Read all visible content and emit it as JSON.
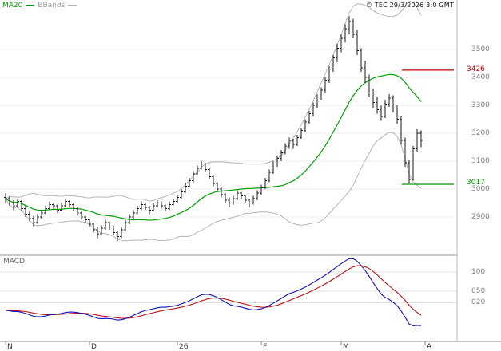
{
  "window": {
    "copyright": "© TEC 29/3/2026 3:0 GMT"
  },
  "legend": {
    "ma_label": "MA20",
    "bbands_label": "BBands"
  },
  "macd_panel": {
    "label": "MACD"
  },
  "colors": {
    "ma": "#00a000",
    "bbands": "#b5b5b5",
    "candle": "#1a1a1a",
    "macd": "#1111bb",
    "signal": "#bb1111",
    "resistance": "#cc0000",
    "support": "#009900"
  },
  "chart_data": {
    "type": "candlestick",
    "title": "",
    "price_axis": {
      "labels": [
        "3500",
        "3400",
        "3300",
        "3200",
        "3100",
        "3000",
        "2900"
      ],
      "values": [
        3500,
        3400,
        3300,
        3200,
        3100,
        3000,
        2900
      ]
    },
    "macd_axis": {
      "labels": [
        "100",
        "050",
        "020"
      ],
      "values": [
        100,
        50,
        20
      ]
    },
    "x_axis": {
      "labels": [
        "N",
        "D",
        "26",
        "F",
        "M",
        "A"
      ],
      "candle_indices": [
        0,
        21,
        43,
        64,
        84,
        105
      ]
    },
    "levels": {
      "resistance": {
        "label": "3426",
        "value": 3426
      },
      "support": {
        "label": "3017",
        "value": 3017
      }
    },
    "indicators": {
      "ma_period": 20,
      "bband_period": 20,
      "bband_stddev": 2,
      "macd": [
        12,
        26,
        9
      ]
    },
    "ohlc": [
      [
        2970,
        2985,
        2950,
        2965
      ],
      [
        2965,
        2975,
        2940,
        2950
      ],
      [
        2950,
        2960,
        2925,
        2940
      ],
      [
        2940,
        2965,
        2935,
        2955
      ],
      [
        2955,
        2960,
        2920,
        2930
      ],
      [
        2930,
        2940,
        2900,
        2910
      ],
      [
        2910,
        2920,
        2885,
        2895
      ],
      [
        2895,
        2905,
        2865,
        2880
      ],
      [
        2880,
        2910,
        2875,
        2900
      ],
      [
        2900,
        2925,
        2895,
        2915
      ],
      [
        2915,
        2940,
        2910,
        2930
      ],
      [
        2930,
        2955,
        2925,
        2945
      ],
      [
        2945,
        2950,
        2930,
        2940
      ],
      [
        2940,
        2945,
        2915,
        2925
      ],
      [
        2925,
        2950,
        2920,
        2940
      ],
      [
        2940,
        2965,
        2935,
        2955
      ],
      [
        2955,
        2960,
        2935,
        2945
      ],
      [
        2945,
        2950,
        2920,
        2930
      ],
      [
        2930,
        2935,
        2905,
        2915
      ],
      [
        2915,
        2920,
        2890,
        2900
      ],
      [
        2900,
        2905,
        2880,
        2890
      ],
      [
        2890,
        2895,
        2865,
        2875
      ],
      [
        2875,
        2880,
        2845,
        2855
      ],
      [
        2855,
        2865,
        2825,
        2840
      ],
      [
        2840,
        2870,
        2835,
        2860
      ],
      [
        2860,
        2890,
        2855,
        2880
      ],
      [
        2880,
        2885,
        2855,
        2865
      ],
      [
        2865,
        2870,
        2835,
        2845
      ],
      [
        2845,
        2850,
        2815,
        2830
      ],
      [
        2830,
        2865,
        2825,
        2855
      ],
      [
        2855,
        2890,
        2850,
        2880
      ],
      [
        2880,
        2910,
        2875,
        2900
      ],
      [
        2900,
        2925,
        2895,
        2915
      ],
      [
        2915,
        2940,
        2910,
        2930
      ],
      [
        2930,
        2955,
        2925,
        2945
      ],
      [
        2945,
        2950,
        2925,
        2935
      ],
      [
        2935,
        2940,
        2910,
        2925
      ],
      [
        2925,
        2950,
        2920,
        2940
      ],
      [
        2940,
        2960,
        2935,
        2950
      ],
      [
        2950,
        2955,
        2930,
        2940
      ],
      [
        2940,
        2945,
        2920,
        2930
      ],
      [
        2930,
        2955,
        2925,
        2945
      ],
      [
        2945,
        2965,
        2940,
        2955
      ],
      [
        2955,
        2980,
        2950,
        2970
      ],
      [
        2970,
        3000,
        2965,
        2990
      ],
      [
        2990,
        3020,
        2985,
        3010
      ],
      [
        3010,
        3040,
        3005,
        3030
      ],
      [
        3030,
        3065,
        3025,
        3055
      ],
      [
        3055,
        3085,
        3050,
        3075
      ],
      [
        3075,
        3100,
        3070,
        3090
      ],
      [
        3090,
        3095,
        3060,
        3070
      ],
      [
        3070,
        3075,
        3035,
        3045
      ],
      [
        3045,
        3050,
        3010,
        3020
      ],
      [
        3020,
        3025,
        2990,
        3000
      ],
      [
        3000,
        3005,
        2970,
        2980
      ],
      [
        2980,
        2985,
        2950,
        2960
      ],
      [
        2960,
        2970,
        2935,
        2950
      ],
      [
        2950,
        2975,
        2945,
        2965
      ],
      [
        2965,
        2995,
        2960,
        2985
      ],
      [
        2985,
        2990,
        2965,
        2975
      ],
      [
        2975,
        2980,
        2950,
        2960
      ],
      [
        2960,
        2965,
        2935,
        2950
      ],
      [
        2950,
        2975,
        2945,
        2965
      ],
      [
        2965,
        2995,
        2960,
        2985
      ],
      [
        2985,
        3015,
        2980,
        3005
      ],
      [
        3005,
        3040,
        3000,
        3030
      ],
      [
        3030,
        3070,
        3025,
        3060
      ],
      [
        3060,
        3100,
        3055,
        3090
      ],
      [
        3090,
        3120,
        3080,
        3110
      ],
      [
        3110,
        3140,
        3100,
        3130
      ],
      [
        3130,
        3165,
        3125,
        3155
      ],
      [
        3155,
        3185,
        3145,
        3175
      ],
      [
        3175,
        3180,
        3145,
        3160
      ],
      [
        3160,
        3195,
        3155,
        3185
      ],
      [
        3185,
        3220,
        3180,
        3210
      ],
      [
        3210,
        3250,
        3205,
        3240
      ],
      [
        3240,
        3280,
        3235,
        3270
      ],
      [
        3270,
        3310,
        3260,
        3300
      ],
      [
        3300,
        3340,
        3290,
        3330
      ],
      [
        3330,
        3365,
        3320,
        3355
      ],
      [
        3355,
        3400,
        3345,
        3390
      ],
      [
        3390,
        3440,
        3380,
        3430
      ],
      [
        3430,
        3480,
        3420,
        3470
      ],
      [
        3470,
        3520,
        3455,
        3505
      ],
      [
        3505,
        3555,
        3490,
        3540
      ],
      [
        3540,
        3590,
        3525,
        3575
      ],
      [
        3575,
        3620,
        3555,
        3600
      ],
      [
        3600,
        3610,
        3540,
        3555
      ],
      [
        3555,
        3570,
        3480,
        3495
      ],
      [
        3495,
        3505,
        3420,
        3435
      ],
      [
        3435,
        3460,
        3380,
        3400
      ],
      [
        3400,
        3410,
        3330,
        3345
      ],
      [
        3345,
        3360,
        3290,
        3310
      ],
      [
        3310,
        3330,
        3270,
        3285
      ],
      [
        3285,
        3300,
        3245,
        3260
      ],
      [
        3260,
        3320,
        3255,
        3305
      ],
      [
        3305,
        3340,
        3295,
        3325
      ],
      [
        3325,
        3335,
        3275,
        3290
      ],
      [
        3290,
        3300,
        3235,
        3250
      ],
      [
        3250,
        3260,
        3160,
        3175
      ],
      [
        3175,
        3185,
        3080,
        3095
      ],
      [
        3095,
        3105,
        3020,
        3035
      ],
      [
        3035,
        3155,
        3030,
        3145
      ],
      [
        3145,
        3215,
        3135,
        3200
      ],
      [
        3200,
        3210,
        3150,
        3175
      ]
    ]
  }
}
